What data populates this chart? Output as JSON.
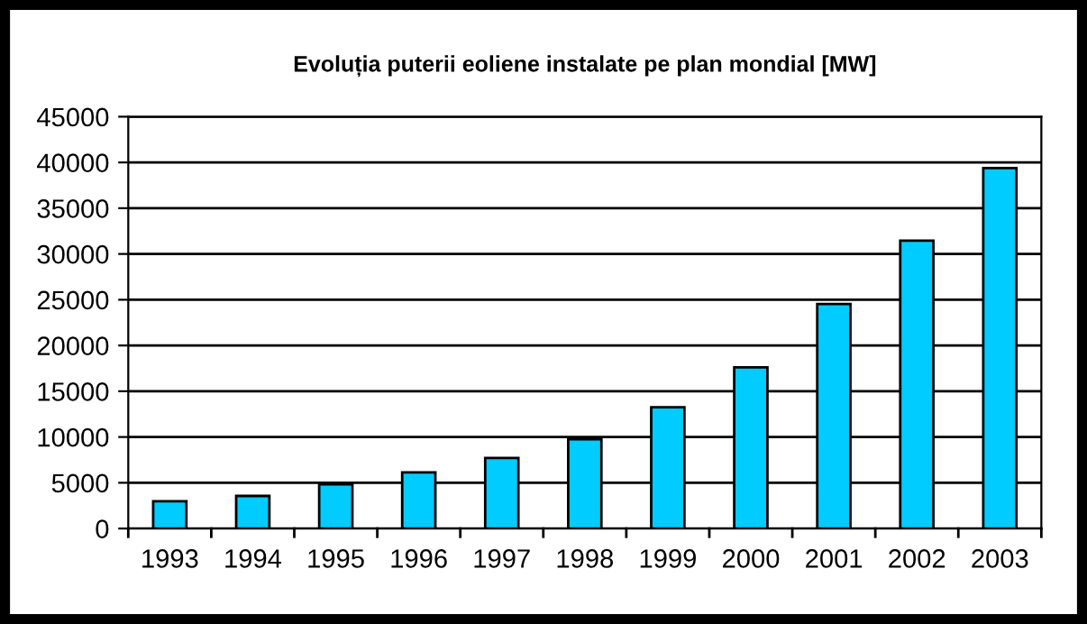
{
  "chart_data": {
    "type": "bar",
    "title": "Evoluția puterii eoliene instalate pe plan mondial [MW]",
    "categories": [
      "1993",
      "1994",
      "1995",
      "1996",
      "1997",
      "1998",
      "1999",
      "2000",
      "2001",
      "2002",
      "2003"
    ],
    "values": [
      2970,
      3560,
      4820,
      6130,
      7720,
      9760,
      13260,
      17610,
      24540,
      31460,
      39380
    ],
    "color": "#00ccff",
    "ylim": [
      0,
      45000
    ],
    "yticks": [
      0,
      5000,
      10000,
      15000,
      20000,
      25000,
      30000,
      35000,
      40000,
      45000
    ],
    "grid": "y",
    "legend": false
  }
}
